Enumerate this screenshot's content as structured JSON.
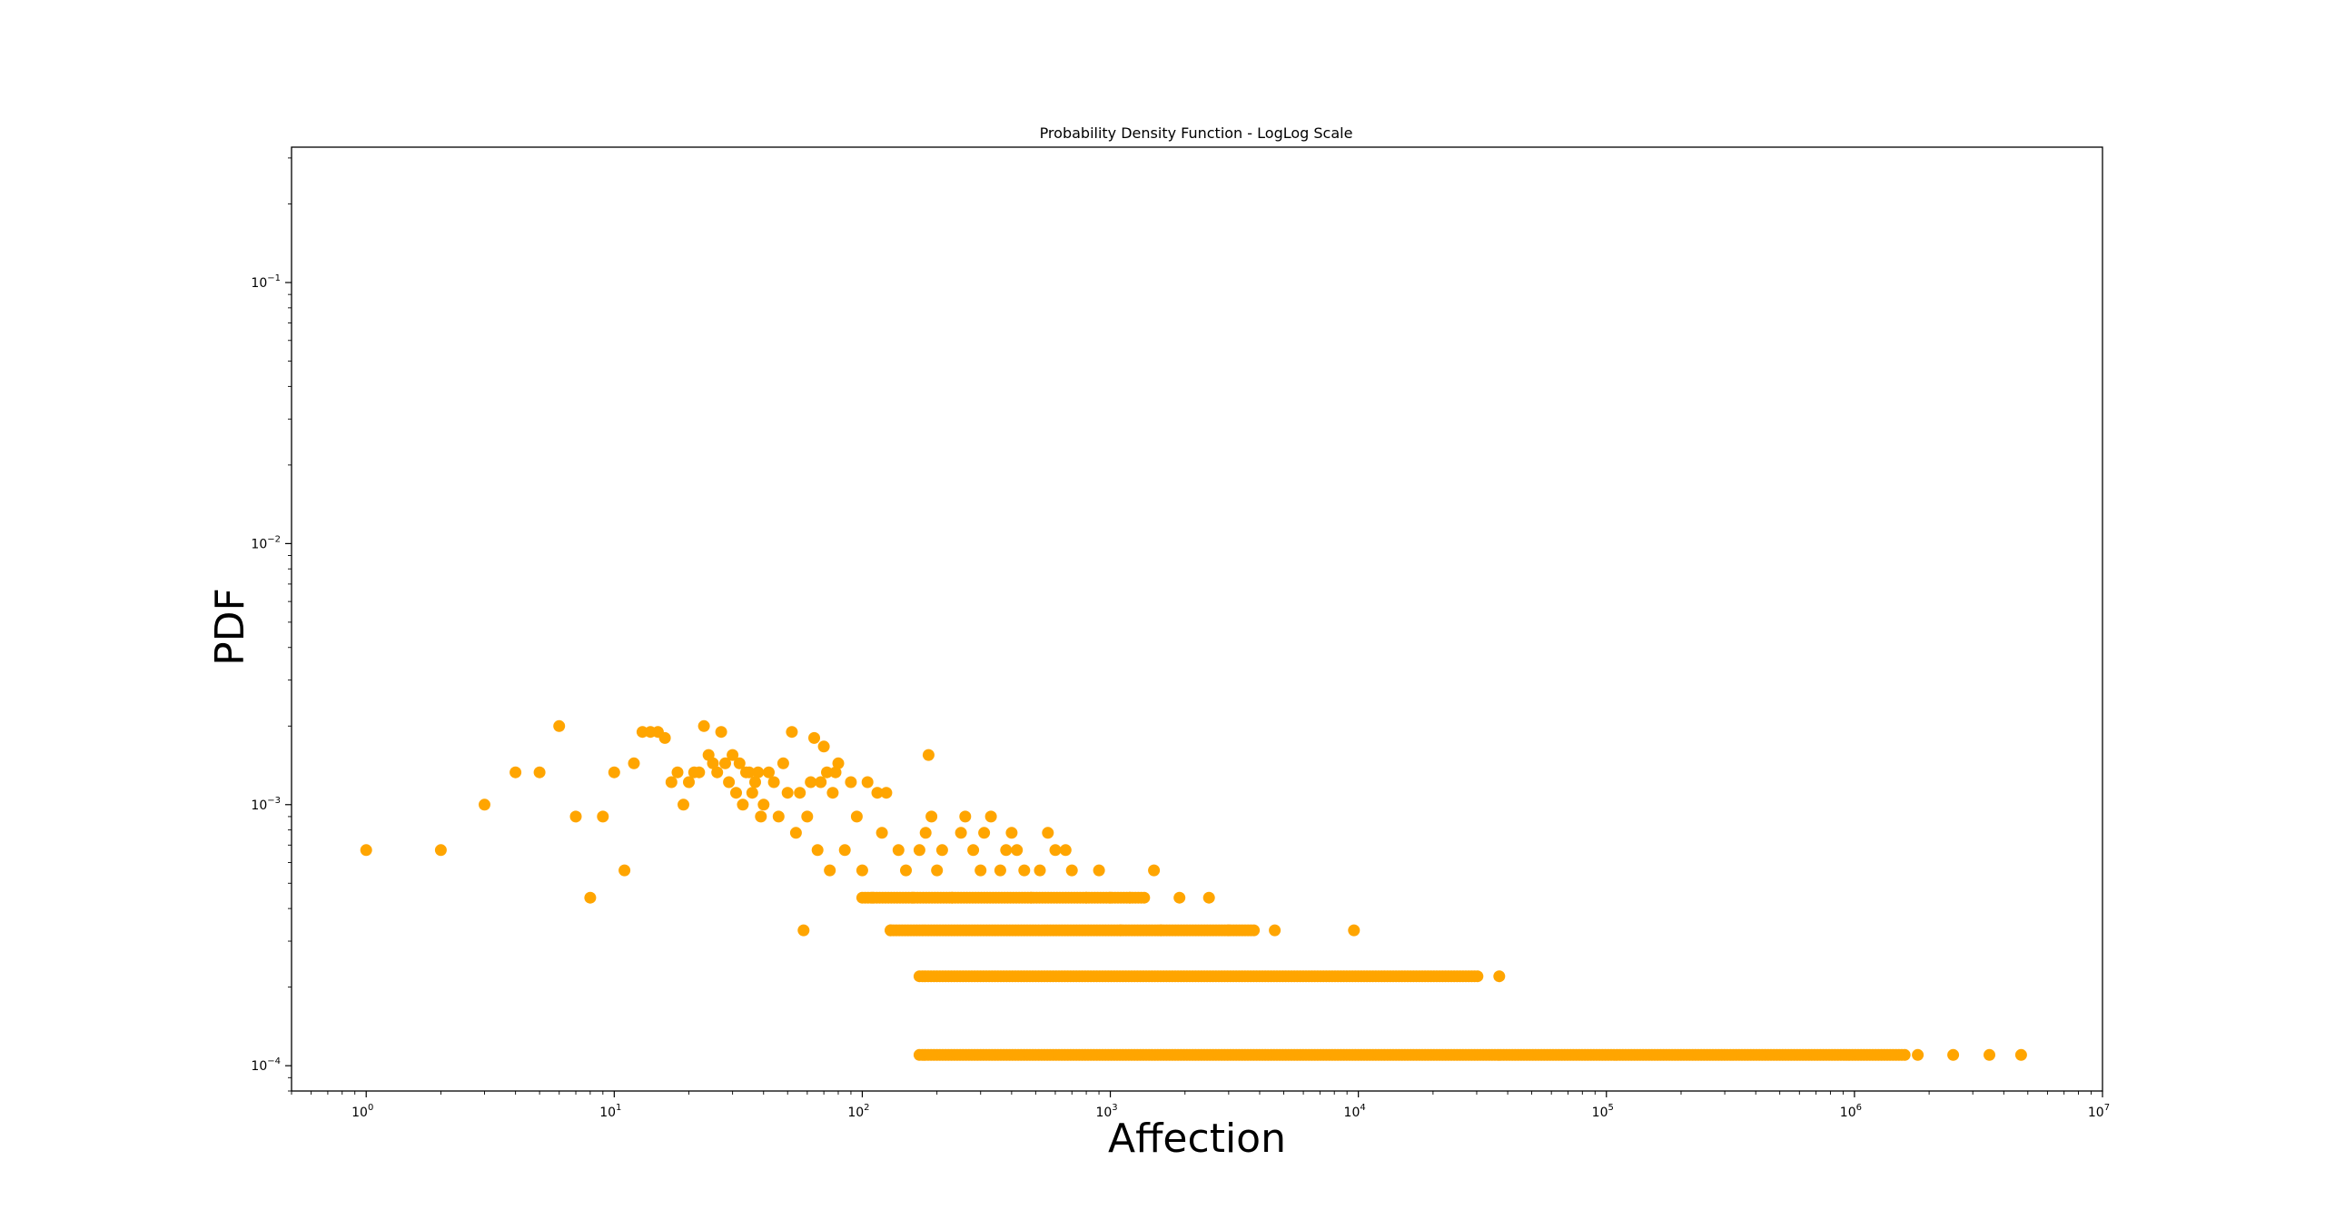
{
  "chart_data": {
    "type": "scatter",
    "title": "Probability Density Function - LogLog Scale",
    "xlabel": "Affection",
    "ylabel": "PDF",
    "xscale": "log",
    "yscale": "log",
    "xlim": [
      0.5,
      10000000
    ],
    "ylim": [
      8e-05,
      0.33
    ],
    "xticks": [
      {
        "value": 1,
        "base": "10",
        "exp": "0"
      },
      {
        "value": 10,
        "base": "10",
        "exp": "1"
      },
      {
        "value": 100,
        "base": "10",
        "exp": "2"
      },
      {
        "value": 1000,
        "base": "10",
        "exp": "3"
      },
      {
        "value": 10000,
        "base": "10",
        "exp": "4"
      },
      {
        "value": 100000,
        "base": "10",
        "exp": "5"
      },
      {
        "value": 1000000,
        "base": "10",
        "exp": "6"
      },
      {
        "value": 10000000,
        "base": "10",
        "exp": "7"
      }
    ],
    "yticks": [
      {
        "value": 0.0001,
        "base": "10",
        "exp": "−4"
      },
      {
        "value": 0.001,
        "base": "10",
        "exp": "−3"
      },
      {
        "value": 0.01,
        "base": "10",
        "exp": "−2"
      },
      {
        "value": 0.1,
        "base": "10",
        "exp": "−1"
      }
    ],
    "grid": false,
    "marker_color": "#ffa500",
    "points": [
      [
        1,
        0.00067
      ],
      [
        2,
        0.00067
      ],
      [
        3,
        0.001
      ],
      [
        4,
        0.00133
      ],
      [
        5,
        0.00133
      ],
      [
        6,
        0.002
      ],
      [
        7,
        0.0009
      ],
      [
        8,
        0.00044
      ],
      [
        9,
        0.0009
      ],
      [
        10,
        0.00133
      ],
      [
        11,
        0.00056
      ],
      [
        12,
        0.00144
      ],
      [
        13,
        0.0019
      ],
      [
        14,
        0.0019
      ],
      [
        15,
        0.0019
      ],
      [
        16,
        0.0018
      ],
      [
        17,
        0.00122
      ],
      [
        18,
        0.00133
      ],
      [
        19,
        0.001
      ],
      [
        20,
        0.00122
      ],
      [
        21,
        0.00133
      ],
      [
        22,
        0.00133
      ],
      [
        23,
        0.002
      ],
      [
        24,
        0.00155
      ],
      [
        25,
        0.00144
      ],
      [
        26,
        0.00133
      ],
      [
        27,
        0.0019
      ],
      [
        28,
        0.00144
      ],
      [
        29,
        0.00122
      ],
      [
        30,
        0.00155
      ],
      [
        31,
        0.00111
      ],
      [
        32,
        0.00144
      ],
      [
        33,
        0.001
      ],
      [
        34,
        0.00133
      ],
      [
        35,
        0.00133
      ],
      [
        36,
        0.00111
      ],
      [
        37,
        0.00122
      ],
      [
        38,
        0.00133
      ],
      [
        39,
        0.0009
      ],
      [
        40,
        0.001
      ],
      [
        42,
        0.00133
      ],
      [
        44,
        0.00122
      ],
      [
        46,
        0.0009
      ],
      [
        48,
        0.00144
      ],
      [
        50,
        0.00111
      ],
      [
        52,
        0.0019
      ],
      [
        54,
        0.00078
      ],
      [
        56,
        0.00111
      ],
      [
        58,
        0.00033
      ],
      [
        60,
        0.0009
      ],
      [
        62,
        0.00122
      ],
      [
        64,
        0.0018
      ],
      [
        66,
        0.00067
      ],
      [
        68,
        0.00122
      ],
      [
        70,
        0.00167
      ],
      [
        72,
        0.00133
      ],
      [
        74,
        0.00056
      ],
      [
        76,
        0.00111
      ],
      [
        78,
        0.00133
      ],
      [
        80,
        0.00144
      ],
      [
        85,
        0.00067
      ],
      [
        90,
        0.00122
      ],
      [
        95,
        0.0009
      ],
      [
        100,
        0.00056
      ],
      [
        105,
        0.00122
      ],
      [
        110,
        0.00044
      ],
      [
        115,
        0.00111
      ],
      [
        120,
        0.00078
      ],
      [
        125,
        0.00111
      ],
      [
        130,
        0.00033
      ],
      [
        140,
        0.00067
      ],
      [
        150,
        0.00056
      ],
      [
        160,
        0.00044
      ],
      [
        170,
        0.00067
      ],
      [
        180,
        0.00078
      ],
      [
        185,
        0.00155
      ],
      [
        190,
        0.0009
      ],
      [
        200,
        0.00056
      ],
      [
        210,
        0.00067
      ],
      [
        230,
        0.00044
      ],
      [
        250,
        0.00078
      ],
      [
        260,
        0.0009
      ],
      [
        280,
        0.00067
      ],
      [
        300,
        0.00056
      ],
      [
        310,
        0.00078
      ],
      [
        330,
        0.0009
      ],
      [
        360,
        0.00056
      ],
      [
        380,
        0.00067
      ],
      [
        400,
        0.00078
      ],
      [
        420,
        0.00067
      ],
      [
        450,
        0.00056
      ],
      [
        480,
        0.00044
      ],
      [
        520,
        0.00056
      ],
      [
        560,
        0.00078
      ],
      [
        600,
        0.00067
      ],
      [
        660,
        0.00067
      ],
      [
        700,
        0.00056
      ],
      [
        800,
        0.00044
      ],
      [
        900,
        0.00056
      ],
      [
        1000,
        0.00044
      ],
      [
        1100,
        0.00033
      ],
      [
        1200,
        0.00044
      ],
      [
        1500,
        0.00056
      ],
      [
        1600,
        0.00033
      ],
      [
        1900,
        0.00044
      ],
      [
        2500,
        0.00044
      ],
      [
        3000,
        0.00033
      ],
      [
        4600,
        0.00033
      ],
      [
        9600,
        0.00033
      ],
      [
        37000,
        0.00022
      ],
      [
        1800000,
        0.00011
      ],
      [
        2500000,
        0.00011
      ],
      [
        3500000,
        0.00011
      ],
      [
        4700000,
        0.00011
      ]
    ],
    "bands": [
      {
        "y": 0.00044,
        "xmin": 100,
        "xmax": 1400
      },
      {
        "y": 0.00033,
        "xmin": 130,
        "xmax": 3800
      },
      {
        "y": 0.00022,
        "xmin": 170,
        "xmax": 31000
      },
      {
        "y": 0.00011,
        "xmin": 170,
        "xmax": 1600000
      }
    ]
  }
}
